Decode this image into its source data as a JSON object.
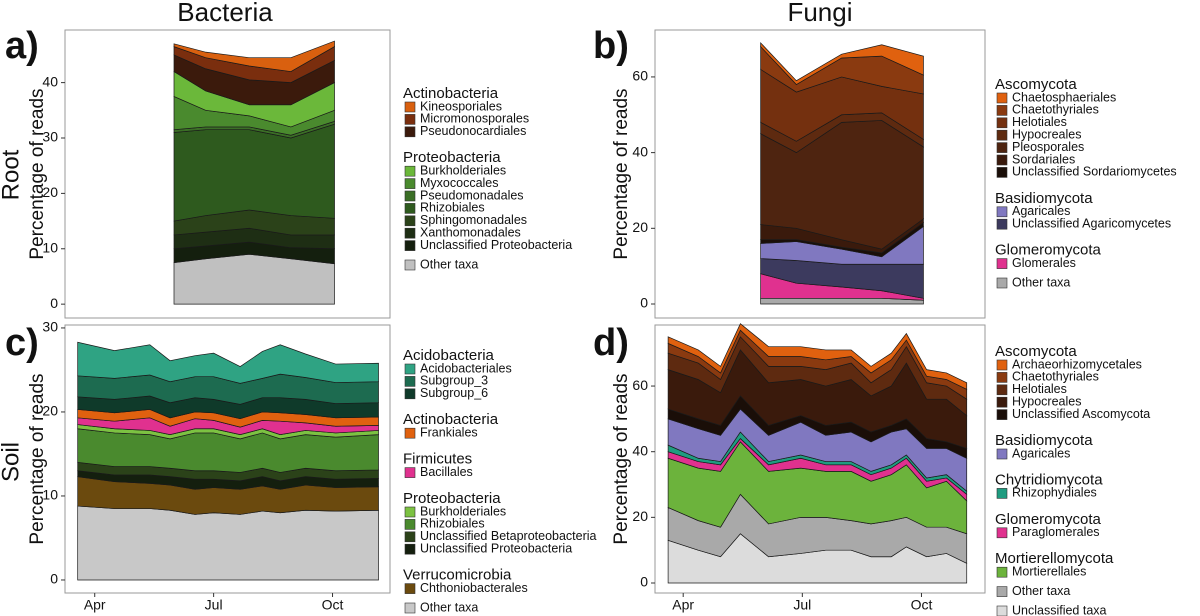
{
  "column_titles": [
    "Bacteria",
    "Fungi"
  ],
  "row_titles": [
    "Root",
    "Soil"
  ],
  "chart_data": [
    {
      "type": "stacked_area",
      "panel_label": "a)",
      "ylabel": "Percentage of reads",
      "xlim": [
        3.25,
        11.45
      ],
      "ylim": [
        -2.5,
        49.5
      ],
      "yticks": [
        0,
        10,
        20,
        30,
        40
      ],
      "x": [
        6,
        6.8,
        7.9,
        8.95,
        10.05
      ],
      "series": [
        {
          "name": "Other taxa",
          "color": "#c0c0c0",
          "values": [
            7.5,
            8.2,
            9,
            8.2,
            7.3
          ]
        },
        {
          "name": "Unclassified Proteobacteria",
          "group": "Proteobacteria",
          "color": "#141f0e",
          "values": [
            2.5,
            2.3,
            2.2,
            2,
            2.7
          ]
        },
        {
          "name": "Xanthomonadales",
          "group": "Proteobacteria",
          "color": "#1e2e14",
          "values": [
            2.5,
            2.5,
            2.5,
            2.3,
            2.5
          ]
        },
        {
          "name": "Sphingomonadales",
          "group": "Proteobacteria",
          "color": "#2b4219",
          "values": [
            2.5,
            3,
            3.3,
            3.5,
            3
          ]
        },
        {
          "name": "Rhizobiales",
          "group": "Proteobacteria",
          "color": "#2e5a1e",
          "values": [
            16,
            15.5,
            14.5,
            14,
            17
          ]
        },
        {
          "name": "Pseudomonadales",
          "group": "Proteobacteria",
          "color": "#3b6f26",
          "values": [
            0.5,
            0.5,
            0.5,
            0.5,
            0.5
          ]
        },
        {
          "name": "Myxococcales",
          "group": "Proteobacteria",
          "color": "#4a8a2e",
          "values": [
            6,
            3,
            2,
            1.5,
            2
          ]
        },
        {
          "name": "Burkholderiales",
          "group": "Proteobacteria",
          "color": "#6bb83a",
          "values": [
            4.5,
            3.5,
            2,
            4,
            5
          ]
        },
        {
          "name": "Pseudonocardiales",
          "group": "Actinobacteria",
          "color": "#3b1a0c",
          "values": [
            3,
            4,
            4.5,
            4,
            4
          ]
        },
        {
          "name": "Micromonosporales",
          "group": "Actinobacteria",
          "color": "#7a2e0e",
          "values": [
            1.5,
            2,
            2.5,
            2,
            2.5
          ]
        },
        {
          "name": "Kineosporiales",
          "group": "Actinobacteria",
          "color": "#d9600f",
          "values": [
            0.5,
            1,
            1.5,
            2.5,
            1
          ]
        }
      ]
    },
    {
      "type": "stacked_area",
      "panel_label": "b)",
      "ylabel": "Percentage of reads",
      "xlim": [
        3.29,
        11.6
      ],
      "ylim": [
        -3.7,
        72.4
      ],
      "yticks": [
        0,
        20,
        40,
        60
      ],
      "x": [
        5.95,
        6.85,
        7.99,
        9,
        10.05
      ],
      "series": [
        {
          "name": "Other taxa",
          "color": "#a9a9a9",
          "values": [
            1.5,
            1.5,
            1.5,
            1.5,
            1
          ]
        },
        {
          "name": "Glomerales",
          "group": "Glomeromycota",
          "color": "#e0318f",
          "values": [
            6.5,
            4,
            3,
            2,
            0.5
          ]
        },
        {
          "name": "Unclassified Agaricomycetes",
          "group": "Basidiomycota",
          "color": "#3c3a5e",
          "values": [
            4,
            6,
            6,
            7,
            9
          ]
        },
        {
          "name": "Agaricales",
          "group": "Basidiomycota",
          "color": "#8078c0",
          "values": [
            4,
            5,
            4,
            2,
            10
          ]
        },
        {
          "name": "Unclassified Sordariomycetes",
          "group": "Ascomycota",
          "color": "#1a0e08",
          "values": [
            1,
            0.5,
            0.5,
            1,
            1
          ]
        },
        {
          "name": "Sordariales",
          "group": "Ascomycota",
          "color": "#3a1a0c",
          "values": [
            4,
            3,
            2,
            1,
            1
          ]
        },
        {
          "name": "Pleosporales",
          "group": "Ascomycota",
          "color": "#4e2410",
          "values": [
            24,
            20,
            31,
            34,
            19
          ]
        },
        {
          "name": "Hypocreales",
          "group": "Ascomycota",
          "color": "#5e2a10",
          "values": [
            3,
            3,
            2,
            2,
            2
          ]
        },
        {
          "name": "Helotiales",
          "group": "Ascomycota",
          "color": "#74300f",
          "values": [
            14,
            13,
            10,
            7,
            12
          ]
        },
        {
          "name": "Chaetothyriales",
          "group": "Ascomycota",
          "color": "#8a3a10",
          "values": [
            6,
            2,
            5,
            8,
            5
          ]
        },
        {
          "name": "Chaetosphaeriales",
          "group": "Ascomycota",
          "color": "#e0610f",
          "values": [
            1,
            1,
            1,
            3,
            5
          ]
        }
      ]
    },
    {
      "type": "stacked_area",
      "panel_label": "c)",
      "ylabel": "Percentage of reads",
      "xlim": [
        3.25,
        11.45
      ],
      "ylim": [
        -1.55,
        30.35
      ],
      "yticks": [
        0,
        10,
        20,
        30
      ],
      "xticks": [
        {
          "value": 4,
          "label": "Apr"
        },
        {
          "value": 7,
          "label": "Jul"
        },
        {
          "value": 10,
          "label": "Oct"
        }
      ],
      "x": [
        3.57,
        4.5,
        5.39,
        5.9,
        6.53,
        7,
        7.67,
        8.23,
        8.68,
        9.32,
        10.08,
        11.16
      ],
      "series": [
        {
          "name": "Other taxa",
          "color": "#c8c8c8",
          "values": [
            8.8,
            8.5,
            8.5,
            8.3,
            7.8,
            8,
            7.8,
            8.2,
            8,
            8.3,
            8.2,
            8.3
          ]
        },
        {
          "name": "Chthoniobacterales",
          "group": "Verrucomicrobia",
          "color": "#6b4a0e",
          "values": [
            3.5,
            3.2,
            3,
            3,
            3,
            3,
            3,
            3,
            2.8,
            3,
            2.8,
            2.8
          ]
        },
        {
          "name": "Unclassified Proteobacteria",
          "group": "Proteobacteria",
          "color": "#141f0e",
          "values": [
            0.7,
            0.8,
            1,
            1,
            1.2,
            1,
            1,
            1.1,
            1,
            1,
            1,
            1
          ]
        },
        {
          "name": "Unclassified Betaproteobacteria",
          "group": "Proteobacteria",
          "color": "#2b4219",
          "values": [
            1,
            1,
            1,
            1,
            1,
            1,
            1,
            1,
            1,
            1,
            1,
            1
          ]
        },
        {
          "name": "Rhizobiales",
          "group": "Proteobacteria",
          "color": "#4a8a2e",
          "values": [
            4,
            4,
            3.8,
            3.5,
            4.5,
            4.5,
            4,
            4.2,
            4,
            4,
            4,
            4.2
          ]
        },
        {
          "name": "Burkholderiales",
          "group": "Proteobacteria",
          "color": "#7cc242",
          "values": [
            0.5,
            0.5,
            0.5,
            0.5,
            0.5,
            0.5,
            0.5,
            0.5,
            0.5,
            0.5,
            0.5,
            0.5
          ]
        },
        {
          "name": "Bacillales",
          "group": "Firmicutes",
          "color": "#e0318f",
          "values": [
            0.8,
            0.9,
            1.5,
            1,
            1.2,
            1,
            0.9,
            1,
            1.6,
            0.9,
            0.8,
            0.6
          ]
        },
        {
          "name": "Frankiales",
          "group": "Actinobacteria",
          "color": "#e0610f",
          "values": [
            1,
            1,
            1,
            1,
            0.8,
            0.9,
            1,
            1,
            1,
            1,
            1,
            1
          ]
        },
        {
          "name": "Subgroup_6",
          "group": "Acidobacteria",
          "color": "#0f3a2a",
          "values": [
            1.5,
            1.6,
            1.6,
            1.8,
            1.7,
            1.6,
            1.7,
            1.7,
            1.8,
            1.8,
            1.7,
            1.7
          ]
        },
        {
          "name": "Subgroup_3",
          "group": "Acidobacteria",
          "color": "#1d6b50",
          "values": [
            2.5,
            2.5,
            2.5,
            2.5,
            2.5,
            2.7,
            2.5,
            2.3,
            2.8,
            2.6,
            2.5,
            2.5
          ]
        },
        {
          "name": "Acidobacteriales",
          "group": "Acidobacteria",
          "color": "#2fa383",
          "values": [
            4,
            3.3,
            3.6,
            2.5,
            2.5,
            2.8,
            2,
            3.2,
            3.5,
            2.8,
            2.2,
            2.2
          ]
        }
      ]
    },
    {
      "type": "stacked_area",
      "panel_label": "d)",
      "ylabel": "Percentage of reads",
      "xlim": [
        3.29,
        11.6
      ],
      "ylim": [
        -3.05,
        78.6
      ],
      "yticks": [
        0,
        20,
        40,
        60
      ],
      "xticks": [
        {
          "value": 4,
          "label": "Apr"
        },
        {
          "value": 7,
          "label": "Jul"
        },
        {
          "value": 10,
          "label": "Oct"
        }
      ],
      "x": [
        3.62,
        4.38,
        4.94,
        5.44,
        6.15,
        6.96,
        7.59,
        8.23,
        8.73,
        9.24,
        9.62,
        10.13,
        10.63,
        11.14
      ],
      "series": [
        {
          "name": "Unclassified taxa",
          "color": "#dcdcdc",
          "values": [
            13,
            10,
            8,
            15,
            8,
            9,
            10,
            10,
            8,
            8,
            11,
            8,
            9,
            6
          ]
        },
        {
          "name": "Other taxa",
          "color": "#a9a9a9",
          "values": [
            10,
            9,
            9,
            12,
            10,
            11,
            10,
            9,
            10,
            11,
            9,
            9,
            8,
            9
          ]
        },
        {
          "name": "Mortierellales",
          "group": "Mortierellomycota",
          "color": "#6cb33c",
          "values": [
            15,
            16,
            17,
            16,
            16,
            15,
            14,
            15,
            13,
            14,
            16,
            12,
            14,
            10
          ]
        },
        {
          "name": "Paraglomerales",
          "group": "Glomeromycota",
          "color": "#e0318f",
          "values": [
            2,
            2,
            2,
            1,
            2,
            3,
            2,
            2,
            2,
            2,
            2,
            2,
            1,
            2
          ]
        },
        {
          "name": "Rhizophydiales",
          "group": "Chytridiomycota",
          "color": "#1f9c80",
          "values": [
            2,
            1,
            1,
            2,
            1,
            1,
            1,
            1,
            1,
            1,
            1,
            1,
            1,
            1
          ]
        },
        {
          "name": "Agaricales",
          "group": "Basidiomycota",
          "color": "#8078c0",
          "values": [
            8,
            9,
            8,
            7,
            8,
            10,
            8,
            9,
            9,
            10,
            8,
            9,
            8,
            10
          ]
        },
        {
          "name": "Unclassified Ascomycota",
          "group": "Ascomycota",
          "color": "#1a0e08",
          "values": [
            3,
            3,
            3,
            4,
            3,
            2,
            3,
            3,
            3,
            2,
            3,
            3,
            2,
            3
          ]
        },
        {
          "name": "Hypocreales",
          "group": "Ascomycota",
          "color": "#3a1a0c",
          "values": [
            12,
            12,
            10,
            14,
            13,
            11,
            12,
            13,
            11,
            12,
            17,
            12,
            13,
            10
          ]
        },
        {
          "name": "Helotiales",
          "group": "Ascomycota",
          "color": "#5e2a10",
          "values": [
            5,
            5,
            4,
            4,
            5,
            4,
            5,
            5,
            4,
            5,
            5,
            5,
            4,
            5
          ]
        },
        {
          "name": "Chaetothyriales",
          "group": "Ascomycota",
          "color": "#8a3a10",
          "values": [
            3,
            2,
            2,
            2,
            3,
            3,
            3,
            2,
            3,
            3,
            2,
            2,
            2,
            3
          ]
        },
        {
          "name": "Archaeorhizomycetales",
          "group": "Ascomycota",
          "color": "#e0610f",
          "values": [
            2,
            2,
            2,
            2,
            3,
            3,
            3,
            2,
            2,
            2,
            2,
            2,
            2,
            2
          ]
        }
      ]
    }
  ]
}
